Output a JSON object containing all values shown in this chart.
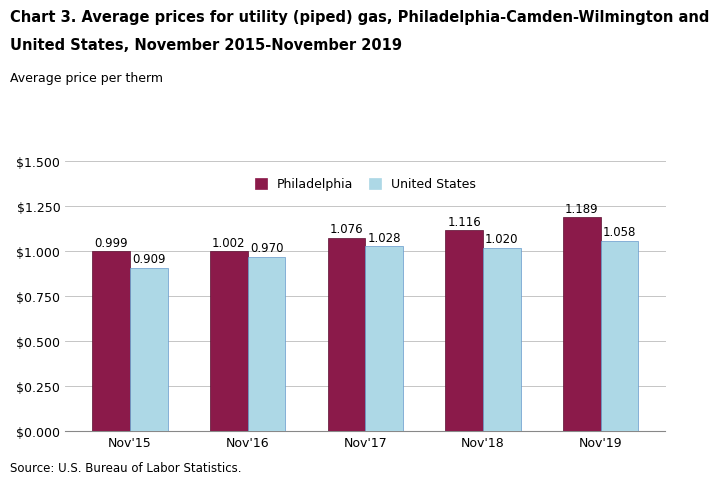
{
  "title_line1": "Chart 3. Average prices for utility (piped) gas, Philadelphia-Camden-Wilmington and",
  "title_line2": "United States, November 2015-November 2019",
  "ylabel": "Average price per therm",
  "source": "Source: U.S. Bureau of Labor Statistics.",
  "categories": [
    "Nov'15",
    "Nov'16",
    "Nov'17",
    "Nov'18",
    "Nov'19"
  ],
  "philadelphia": [
    0.999,
    1.002,
    1.076,
    1.116,
    1.189
  ],
  "us": [
    0.909,
    0.97,
    1.028,
    1.02,
    1.058
  ],
  "philly_color": "#8B1A4A",
  "us_color": "#ADD8E6",
  "philly_edge": "#5a0f30",
  "us_edge": "#6699cc",
  "ylim": [
    0,
    1.5
  ],
  "yticks": [
    0.0,
    0.25,
    0.5,
    0.75,
    1.0,
    1.25,
    1.5
  ],
  "ytick_labels": [
    "$0.000",
    "$0.250",
    "$0.500",
    "$0.750",
    "$1.000",
    "$1.250",
    "$1.500"
  ],
  "bar_width": 0.32,
  "legend_labels": [
    "Philadelphia",
    "United States"
  ],
  "title_fontsize": 10.5,
  "label_fontsize": 9,
  "tick_fontsize": 9,
  "annotation_fontsize": 8.5,
  "source_fontsize": 8.5,
  "legend_fontsize": 9
}
